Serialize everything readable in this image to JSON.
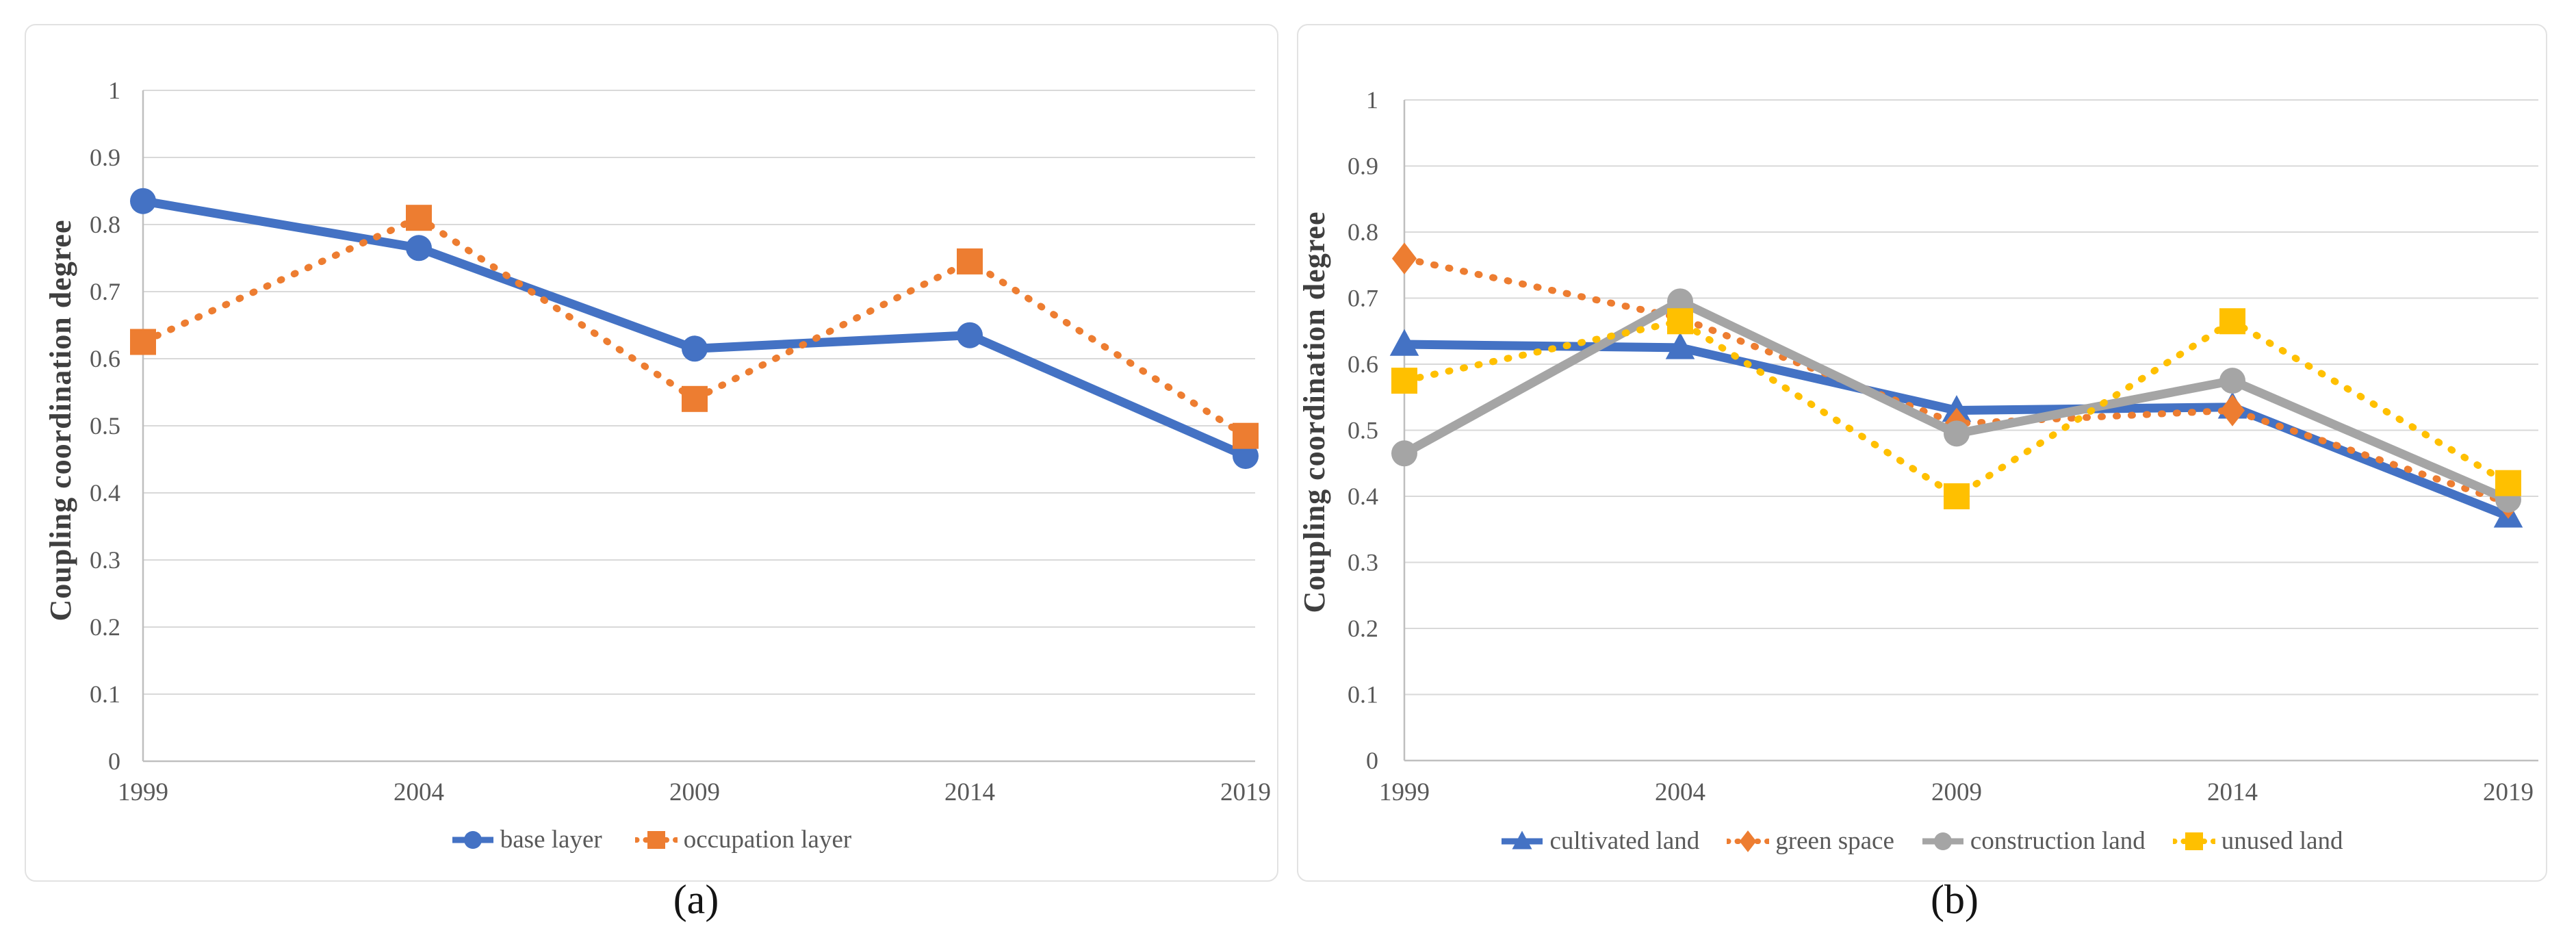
{
  "colors": {
    "blue": "#4472C4",
    "orange": "#ED7D31",
    "gray": "#A5A5A5",
    "yellow": "#FFC000",
    "gridline": "#D9D9D9",
    "axis_line": "#BFBFBF",
    "tick_text": "#595959",
    "axis_title_text": "#3F3F3F",
    "caption_text": "#141414"
  },
  "chart_data": [
    {
      "type": "line",
      "caption": "(a)",
      "title": "",
      "xlabel": "",
      "ylabel": "Coupling coordination degree",
      "categories": [
        "1999",
        "2004",
        "2009",
        "2014",
        "2019"
      ],
      "ylim": [
        0,
        1
      ],
      "ytick_step": 0.1,
      "grid": true,
      "legend_position": "bottom",
      "series": [
        {
          "name": "base layer",
          "color": "#4472C4",
          "line_style": "solid",
          "marker": "circle",
          "values": [
            0.835,
            0.765,
            0.615,
            0.635,
            0.455
          ]
        },
        {
          "name": "occupation layer",
          "color": "#ED7D31",
          "line_style": "dotted",
          "marker": "square",
          "values": [
            0.625,
            0.81,
            0.54,
            0.745,
            0.485
          ]
        }
      ]
    },
    {
      "type": "line",
      "caption": "(b)",
      "title": "",
      "xlabel": "",
      "ylabel": "Coupling coordination degree",
      "categories": [
        "1999",
        "2004",
        "2009",
        "2014",
        "2019"
      ],
      "ylim": [
        0,
        1
      ],
      "ytick_step": 0.1,
      "grid": true,
      "legend_position": "bottom",
      "series": [
        {
          "name": "cultivated land",
          "color": "#4472C4",
          "line_style": "solid",
          "marker": "triangle",
          "values": [
            0.63,
            0.625,
            0.53,
            0.535,
            0.37
          ]
        },
        {
          "name": "green space",
          "color": "#ED7D31",
          "line_style": "dotted",
          "marker": "diamond",
          "values": [
            0.76,
            0.67,
            0.51,
            0.53,
            0.39
          ]
        },
        {
          "name": "construction land",
          "color": "#A5A5A5",
          "line_style": "solid",
          "marker": "circle",
          "values": [
            0.465,
            0.695,
            0.495,
            0.575,
            0.395
          ]
        },
        {
          "name": "unused land",
          "color": "#FFC000",
          "line_style": "dotted",
          "marker": "square",
          "values": [
            0.575,
            0.665,
            0.4,
            0.665,
            0.42
          ]
        }
      ]
    }
  ]
}
